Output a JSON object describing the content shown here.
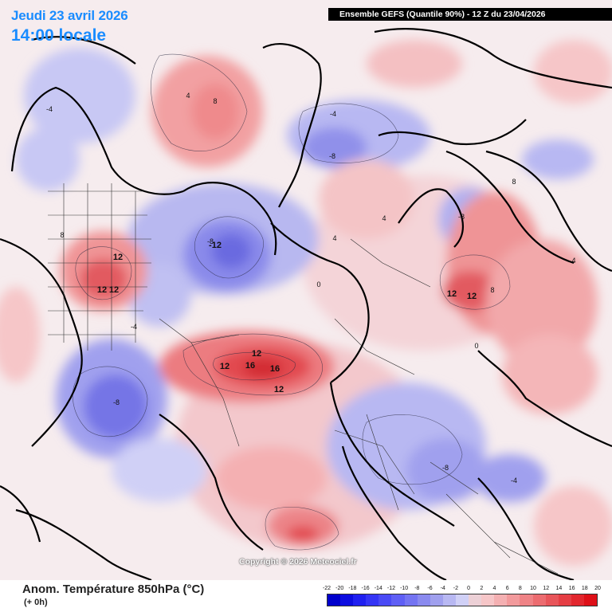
{
  "header": {
    "date_text": "Jeudi 23 avril 2026",
    "time_text": "14:00 locale",
    "run_info": "Ensemble GEFS  (Quantile 90%) - 12 Z du 23/04/2026"
  },
  "copyright": "Copyright © 2026 Meteociel.fr",
  "footer": {
    "variable_title": "Anom. Température 850hPa (°C)",
    "lead_time": "(+ 0h)"
  },
  "legend": {
    "ticks": [
      "-22",
      "-20",
      "-18",
      "-16",
      "-14",
      "-12",
      "-10",
      "-8",
      "-6",
      "-4",
      "-2",
      "0",
      "2",
      "4",
      "6",
      "8",
      "10",
      "12",
      "14",
      "16",
      "18",
      "20"
    ],
    "colors": [
      "#0000cc",
      "#0d0de0",
      "#2020f0",
      "#3535f5",
      "#4a4af5",
      "#5f5ff5",
      "#7474f2",
      "#8a8aef",
      "#a0a0ee",
      "#b8b8f2",
      "#d0d0f6",
      "#ecd0d6",
      "#f6c6c8",
      "#f4b0b2",
      "#f29a9c",
      "#ef8386",
      "#ec6c70",
      "#e8555a",
      "#e53e44",
      "#e2272e",
      "#de1018"
    ]
  },
  "map_labels": [
    {
      "text": "8",
      "kind": "anomaly"
    },
    {
      "text": "8",
      "kind": "anomaly"
    },
    {
      "text": "12",
      "kind": "anomaly"
    },
    {
      "text": "12",
      "kind": "anomaly"
    },
    {
      "text": "12",
      "kind": "anomaly"
    },
    {
      "text": "-12",
      "kind": "anomaly"
    },
    {
      "text": "-8",
      "kind": "anomaly"
    },
    {
      "text": "12",
      "kind": "anomaly"
    },
    {
      "text": "16",
      "kind": "anomaly"
    },
    {
      "text": "16",
      "kind": "anomaly"
    },
    {
      "text": "12",
      "kind": "anomaly"
    },
    {
      "text": "12",
      "kind": "anomaly"
    },
    {
      "text": "12",
      "kind": "anomaly"
    },
    {
      "text": "12",
      "kind": "anomaly"
    },
    {
      "text": "8",
      "kind": "anomaly"
    },
    {
      "text": "-8",
      "kind": "anomaly"
    },
    {
      "text": "-8",
      "kind": "anomaly"
    },
    {
      "text": "-8",
      "kind": "anomaly"
    },
    {
      "text": "-8",
      "kind": "anomaly"
    },
    {
      "text": "-4",
      "kind": "anomaly"
    },
    {
      "text": "-4",
      "kind": "anomaly"
    },
    {
      "text": "4",
      "kind": "anomaly"
    },
    {
      "text": "4",
      "kind": "anomaly"
    },
    {
      "text": "0",
      "kind": "anomaly"
    },
    {
      "text": "0",
      "kind": "anomaly"
    },
    {
      "text": "4",
      "kind": "anomaly"
    },
    {
      "text": "-4",
      "kind": "anomaly"
    },
    {
      "text": "8",
      "kind": "anomaly"
    },
    {
      "text": "4",
      "kind": "anomaly"
    },
    {
      "text": "-4",
      "kind": "anomaly"
    }
  ]
}
